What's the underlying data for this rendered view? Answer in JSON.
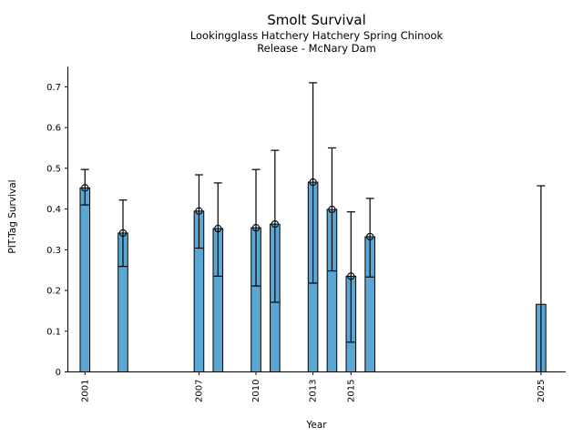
{
  "chart_data": {
    "type": "bar",
    "title": "Smolt Survival",
    "subtitle_line1": "Lookingglass Hatchery Hatchery Spring Chinook",
    "subtitle_line2": "Release - McNary Dam",
    "xlabel": "Year",
    "ylabel": "PIT-Tag Survival",
    "x": [
      2001,
      2003,
      2007,
      2008,
      2010,
      2011,
      2013,
      2014,
      2015,
      2016,
      2025
    ],
    "values": [
      0.452,
      0.341,
      0.395,
      0.352,
      0.354,
      0.363,
      0.466,
      0.399,
      0.235,
      0.332,
      0.166
    ],
    "err_low": [
      0.41,
      0.259,
      0.304,
      0.235,
      0.211,
      0.171,
      0.218,
      0.248,
      0.073,
      0.233,
      0.0
    ],
    "err_high": [
      0.497,
      0.422,
      0.484,
      0.464,
      0.497,
      0.544,
      0.71,
      0.55,
      0.393,
      0.426,
      0.457
    ],
    "has_marker": [
      true,
      true,
      true,
      true,
      true,
      true,
      true,
      true,
      true,
      true,
      false
    ],
    "xticks": [
      2001,
      2007,
      2010,
      2013,
      2015,
      2025
    ],
    "yticks": [
      {
        "value": 0.0,
        "label": "0"
      },
      {
        "value": 0.1,
        "label": "0.1"
      },
      {
        "value": 0.2,
        "label": "0.2"
      },
      {
        "value": 0.3,
        "label": "0.3"
      },
      {
        "value": 0.4,
        "label": "0.4"
      },
      {
        "value": 0.5,
        "label": "0.5"
      },
      {
        "value": 0.6,
        "label": "0.6"
      },
      {
        "value": 0.7,
        "label": "0.7"
      }
    ],
    "xlim": [
      2000.1,
      2026.3
    ],
    "ylim": [
      0,
      0.75
    ],
    "grid": false,
    "legend": null,
    "bar_color": "#5BA7D4",
    "edge_color": "#000000",
    "error_color": "#000000",
    "text_color": "#000000",
    "background_color": "#ffffff"
  }
}
